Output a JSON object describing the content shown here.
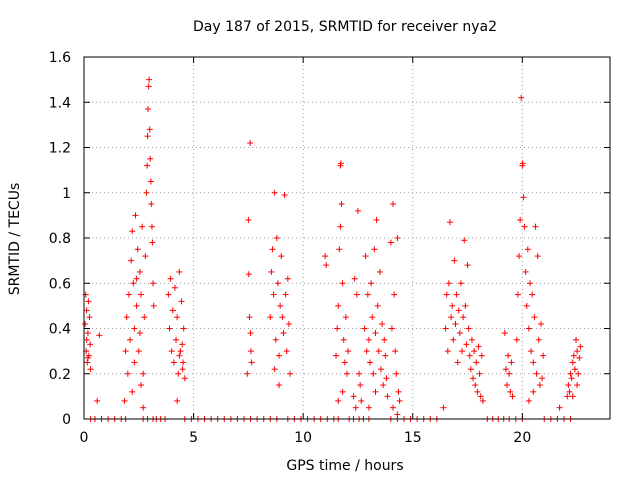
{
  "chart_data": {
    "type": "scatter",
    "title": "Day 187 of 2015, SRMTID for receiver nya2",
    "xlabel": "GPS time / hours",
    "ylabel": "SRMTID / TECUs",
    "xlim": [
      0,
      24
    ],
    "ylim": [
      0,
      1.6
    ],
    "xticks": [
      0,
      5,
      10,
      15,
      20
    ],
    "xtick_labels": [
      "0",
      "5",
      "10",
      "15",
      "20"
    ],
    "yticks": [
      0,
      0.2,
      0.4,
      0.6,
      0.8,
      1.0,
      1.2,
      1.4,
      1.6
    ],
    "ytick_labels": [
      "0",
      "0.2",
      "0.4",
      "0.6",
      "0.8",
      "1",
      "1.2",
      "1.4",
      "1.6"
    ],
    "grid": true,
    "marker": "plus",
    "color": "#ff0000",
    "series": [
      {
        "name": "SRMTID",
        "points": [
          [
            0.05,
            0.42
          ],
          [
            0.08,
            0.55
          ],
          [
            0.1,
            0.3
          ],
          [
            0.12,
            0.48
          ],
          [
            0.15,
            0.25
          ],
          [
            0.18,
            0.38
          ],
          [
            0.2,
            0.52
          ],
          [
            0.22,
            0.28
          ],
          [
            0.25,
            0.45
          ],
          [
            0.28,
            0.33
          ],
          [
            0.3,
            0.22
          ],
          [
            0.12,
            0.35
          ],
          [
            0.18,
            0.27
          ],
          [
            0.6,
            0.08
          ],
          [
            0.7,
            0.37
          ],
          [
            1.85,
            0.08
          ],
          [
            1.9,
            0.3
          ],
          [
            1.95,
            0.45
          ],
          [
            2.0,
            0.2
          ],
          [
            2.05,
            0.55
          ],
          [
            2.1,
            0.35
          ],
          [
            2.15,
            0.7
          ],
          [
            2.2,
            0.83
          ],
          [
            2.25,
            0.6
          ],
          [
            2.3,
            0.4
          ],
          [
            2.35,
            0.9
          ],
          [
            2.4,
            0.5
          ],
          [
            2.45,
            0.75
          ],
          [
            2.5,
            0.3
          ],
          [
            2.55,
            0.65
          ],
          [
            2.6,
            0.55
          ],
          [
            2.65,
            0.85
          ],
          [
            2.7,
            0.2
          ],
          [
            2.75,
            0.45
          ],
          [
            2.8,
            0.72
          ],
          [
            2.85,
            1.0
          ],
          [
            2.88,
            1.12
          ],
          [
            2.9,
            1.25
          ],
          [
            2.92,
            1.37
          ],
          [
            2.95,
            1.47
          ],
          [
            2.97,
            1.5
          ],
          [
            3.0,
            1.28
          ],
          [
            3.02,
            1.15
          ],
          [
            3.05,
            1.05
          ],
          [
            3.07,
            0.95
          ],
          [
            3.1,
            0.85
          ],
          [
            3.12,
            0.78
          ],
          [
            3.15,
            0.6
          ],
          [
            3.18,
            0.5
          ],
          [
            2.2,
            0.12
          ],
          [
            2.3,
            0.25
          ],
          [
            2.6,
            0.15
          ],
          [
            2.7,
            0.05
          ],
          [
            2.4,
            0.62
          ],
          [
            2.55,
            0.38
          ],
          [
            3.85,
            0.55
          ],
          [
            3.9,
            0.4
          ],
          [
            3.95,
            0.62
          ],
          [
            4.0,
            0.3
          ],
          [
            4.05,
            0.48
          ],
          [
            4.1,
            0.25
          ],
          [
            4.15,
            0.58
          ],
          [
            4.2,
            0.35
          ],
          [
            4.25,
            0.45
          ],
          [
            4.3,
            0.2
          ],
          [
            4.35,
            0.65
          ],
          [
            4.4,
            0.3
          ],
          [
            4.45,
            0.52
          ],
          [
            4.5,
            0.22
          ],
          [
            4.55,
            0.4
          ],
          [
            4.6,
            0.18
          ],
          [
            4.25,
            0.08
          ],
          [
            4.35,
            0.28
          ],
          [
            4.48,
            0.33
          ],
          [
            4.52,
            0.25
          ],
          [
            7.45,
            0.2
          ],
          [
            7.5,
            0.88
          ],
          [
            7.52,
            0.64
          ],
          [
            7.55,
            0.45
          ],
          [
            7.58,
            1.22
          ],
          [
            7.6,
            0.38
          ],
          [
            7.62,
            0.3
          ],
          [
            7.65,
            0.25
          ],
          [
            8.5,
            0.45
          ],
          [
            8.55,
            0.65
          ],
          [
            8.6,
            0.75
          ],
          [
            8.65,
            0.55
          ],
          [
            8.7,
            1.0
          ],
          [
            8.75,
            0.35
          ],
          [
            8.8,
            0.8
          ],
          [
            8.85,
            0.6
          ],
          [
            8.9,
            0.28
          ],
          [
            8.95,
            0.5
          ],
          [
            9.0,
            0.72
          ],
          [
            9.05,
            0.45
          ],
          [
            9.1,
            0.38
          ],
          [
            9.15,
            0.99
          ],
          [
            9.2,
            0.55
          ],
          [
            9.25,
            0.3
          ],
          [
            9.3,
            0.62
          ],
          [
            9.35,
            0.42
          ],
          [
            9.4,
            0.2
          ],
          [
            8.7,
            0.22
          ],
          [
            8.9,
            0.15
          ],
          [
            11.0,
            0.72
          ],
          [
            11.05,
            0.68
          ],
          [
            11.5,
            0.28
          ],
          [
            11.55,
            0.4
          ],
          [
            11.6,
            0.5
          ],
          [
            11.65,
            0.75
          ],
          [
            11.7,
            1.12
          ],
          [
            11.72,
            1.13
          ],
          [
            11.75,
            0.95
          ],
          [
            11.8,
            0.6
          ],
          [
            11.85,
            0.35
          ],
          [
            11.9,
            0.25
          ],
          [
            11.95,
            0.45
          ],
          [
            12.0,
            0.2
          ],
          [
            12.05,
            0.3
          ],
          [
            11.6,
            0.08
          ],
          [
            11.8,
            0.12
          ],
          [
            11.7,
            0.85
          ],
          [
            12.3,
            0.1
          ],
          [
            12.35,
            0.62
          ],
          [
            12.4,
            0.05
          ],
          [
            12.45,
            0.55
          ],
          [
            12.5,
            0.92
          ],
          [
            12.55,
            0.2
          ],
          [
            12.6,
            0.15
          ],
          [
            12.65,
            0.08
          ],
          [
            12.8,
            0.4
          ],
          [
            12.85,
            0.72
          ],
          [
            12.9,
            0.3
          ],
          [
            12.95,
            0.55
          ],
          [
            13.0,
            0.35
          ],
          [
            13.05,
            0.25
          ],
          [
            13.1,
            0.6
          ],
          [
            13.15,
            0.45
          ],
          [
            13.2,
            0.2
          ],
          [
            13.25,
            0.75
          ],
          [
            13.3,
            0.38
          ],
          [
            13.35,
            0.88
          ],
          [
            13.4,
            0.5
          ],
          [
            13.45,
            0.3
          ],
          [
            13.5,
            0.65
          ],
          [
            13.55,
            0.22
          ],
          [
            13.6,
            0.42
          ],
          [
            13.65,
            0.15
          ],
          [
            13.7,
            0.35
          ],
          [
            13.75,
            0.28
          ],
          [
            13.8,
            0.18
          ],
          [
            13.85,
            0.1
          ],
          [
            13.0,
            0.05
          ],
          [
            13.3,
            0.12
          ],
          [
            14.0,
            0.78
          ],
          [
            14.05,
            0.4
          ],
          [
            14.1,
            0.95
          ],
          [
            14.15,
            0.55
          ],
          [
            14.2,
            0.3
          ],
          [
            14.25,
            0.2
          ],
          [
            14.3,
            0.8
          ],
          [
            14.35,
            0.12
          ],
          [
            14.4,
            0.08
          ],
          [
            14.1,
            0.05
          ],
          [
            14.3,
            0.02
          ],
          [
            16.4,
            0.05
          ],
          [
            16.5,
            0.4
          ],
          [
            16.55,
            0.55
          ],
          [
            16.6,
            0.3
          ],
          [
            16.65,
            0.6
          ],
          [
            16.7,
            0.87
          ],
          [
            16.75,
            0.45
          ],
          [
            16.8,
            0.5
          ],
          [
            16.85,
            0.35
          ],
          [
            16.9,
            0.7
          ],
          [
            16.95,
            0.42
          ],
          [
            17.0,
            0.55
          ],
          [
            17.05,
            0.25
          ],
          [
            17.1,
            0.48
          ],
          [
            17.15,
            0.38
          ],
          [
            17.2,
            0.6
          ],
          [
            17.25,
            0.3
          ],
          [
            17.3,
            0.45
          ],
          [
            17.35,
            0.79
          ],
          [
            17.4,
            0.5
          ],
          [
            17.45,
            0.33
          ],
          [
            17.5,
            0.68
          ],
          [
            17.55,
            0.4
          ],
          [
            17.6,
            0.28
          ],
          [
            17.65,
            0.22
          ],
          [
            17.7,
            0.35
          ],
          [
            17.75,
            0.18
          ],
          [
            17.8,
            0.3
          ],
          [
            17.85,
            0.15
          ],
          [
            17.9,
            0.25
          ],
          [
            17.95,
            0.12
          ],
          [
            18.0,
            0.32
          ],
          [
            18.05,
            0.2
          ],
          [
            18.1,
            0.1
          ],
          [
            18.15,
            0.28
          ],
          [
            18.2,
            0.08
          ],
          [
            19.2,
            0.38
          ],
          [
            19.25,
            0.22
          ],
          [
            19.3,
            0.15
          ],
          [
            19.35,
            0.28
          ],
          [
            19.4,
            0.2
          ],
          [
            19.45,
            0.12
          ],
          [
            19.5,
            0.25
          ],
          [
            19.55,
            0.1
          ],
          [
            19.75,
            0.35
          ],
          [
            19.8,
            0.55
          ],
          [
            19.85,
            0.72
          ],
          [
            19.9,
            0.88
          ],
          [
            19.95,
            1.42
          ],
          [
            20.0,
            1.12
          ],
          [
            20.02,
            1.13
          ],
          [
            20.05,
            0.98
          ],
          [
            20.1,
            0.85
          ],
          [
            20.15,
            0.65
          ],
          [
            20.2,
            0.5
          ],
          [
            20.25,
            0.75
          ],
          [
            20.3,
            0.4
          ],
          [
            20.35,
            0.6
          ],
          [
            20.4,
            0.3
          ],
          [
            20.45,
            0.55
          ],
          [
            20.5,
            0.25
          ],
          [
            20.55,
            0.45
          ],
          [
            20.6,
            0.85
          ],
          [
            20.65,
            0.2
          ],
          [
            20.7,
            0.72
          ],
          [
            20.75,
            0.35
          ],
          [
            20.8,
            0.15
          ],
          [
            20.85,
            0.42
          ],
          [
            20.9,
            0.18
          ],
          [
            20.95,
            0.28
          ],
          [
            20.3,
            0.08
          ],
          [
            20.5,
            0.12
          ],
          [
            21.7,
            0.05
          ],
          [
            22.05,
            0.1
          ],
          [
            22.1,
            0.15
          ],
          [
            22.15,
            0.12
          ],
          [
            22.2,
            0.2
          ],
          [
            22.25,
            0.18
          ],
          [
            22.3,
            0.25
          ],
          [
            22.35,
            0.28
          ],
          [
            22.4,
            0.22
          ],
          [
            22.45,
            0.35
          ],
          [
            22.5,
            0.3
          ],
          [
            22.55,
            0.2
          ],
          [
            22.6,
            0.27
          ],
          [
            22.65,
            0.32
          ],
          [
            22.3,
            0.1
          ],
          [
            22.5,
            0.15
          ],
          [
            0.3,
            0
          ],
          [
            0.5,
            0
          ],
          [
            0.8,
            0
          ],
          [
            1.1,
            0
          ],
          [
            1.4,
            0
          ],
          [
            1.7,
            0
          ],
          [
            1.9,
            0
          ],
          [
            2.7,
            0
          ],
          [
            2.9,
            0
          ],
          [
            3.15,
            0
          ],
          [
            3.3,
            0
          ],
          [
            3.5,
            0
          ],
          [
            3.7,
            0
          ],
          [
            4.6,
            0
          ],
          [
            4.9,
            0
          ],
          [
            5.2,
            0
          ],
          [
            5.5,
            0
          ],
          [
            5.8,
            0
          ],
          [
            6.1,
            0
          ],
          [
            6.4,
            0
          ],
          [
            6.7,
            0
          ],
          [
            7.0,
            0
          ],
          [
            7.3,
            0
          ],
          [
            7.6,
            0
          ],
          [
            7.9,
            0
          ],
          [
            8.2,
            0
          ],
          [
            8.5,
            0
          ],
          [
            8.8,
            0
          ],
          [
            9.3,
            0
          ],
          [
            9.6,
            0
          ],
          [
            9.9,
            0
          ],
          [
            10.2,
            0
          ],
          [
            10.5,
            0
          ],
          [
            10.8,
            0
          ],
          [
            11.1,
            0
          ],
          [
            11.4,
            0
          ],
          [
            11.6,
            0
          ],
          [
            12.1,
            0
          ],
          [
            12.3,
            0
          ],
          [
            12.55,
            0
          ],
          [
            12.75,
            0
          ],
          [
            13.0,
            0
          ],
          [
            14.0,
            0
          ],
          [
            14.3,
            0
          ],
          [
            14.6,
            0
          ],
          [
            14.9,
            0
          ],
          [
            15.2,
            0
          ],
          [
            15.5,
            0
          ],
          [
            15.8,
            0
          ],
          [
            16.1,
            0
          ],
          [
            18.4,
            0
          ],
          [
            18.65,
            0
          ],
          [
            18.9,
            0
          ],
          [
            19.15,
            0
          ],
          [
            19.4,
            0
          ],
          [
            19.7,
            0
          ],
          [
            20.0,
            0
          ],
          [
            21.0,
            0
          ],
          [
            21.3,
            0
          ],
          [
            21.6,
            0
          ],
          [
            21.9,
            0
          ],
          [
            22.2,
            0
          ]
        ]
      }
    ]
  }
}
